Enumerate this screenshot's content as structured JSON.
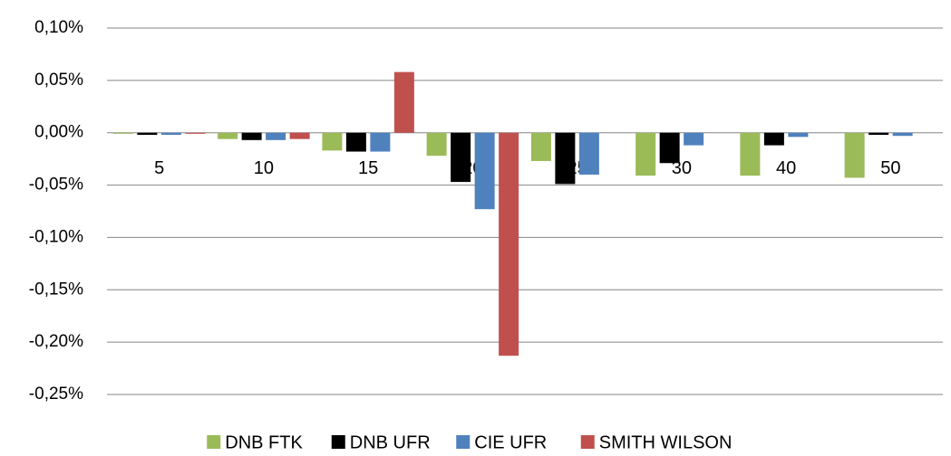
{
  "chart_data": {
    "type": "bar",
    "categories": [
      "5",
      "10",
      "15",
      "20",
      "25",
      "30",
      "40",
      "50"
    ],
    "series": [
      {
        "name": "DNB FTK",
        "color": "#9bbb59",
        "values": [
          -0.001,
          -0.006,
          -0.017,
          -0.022,
          -0.027,
          -0.041,
          -0.041,
          -0.043
        ]
      },
      {
        "name": "DNB UFR",
        "color": "#000000",
        "values": [
          -0.002,
          -0.007,
          -0.018,
          -0.047,
          -0.049,
          -0.029,
          -0.012,
          -0.002
        ]
      },
      {
        "name": "CIE UFR",
        "color": "#4f81bd",
        "values": [
          -0.002,
          -0.007,
          -0.018,
          -0.073,
          -0.04,
          -0.012,
          -0.004,
          -0.003
        ]
      },
      {
        "name": "SMITH WILSON",
        "color": "#c0504d",
        "values": [
          -0.001,
          -0.006,
          0.058,
          -0.213,
          null,
          null,
          null,
          null
        ]
      }
    ],
    "ylim": [
      -0.25,
      0.1
    ],
    "yticks": [
      {
        "value": 0.1,
        "label": "0,10%"
      },
      {
        "value": 0.05,
        "label": "0,05%"
      },
      {
        "value": 0,
        "label": "0,00%"
      },
      {
        "value": -0.05,
        "label": "-0,05%"
      },
      {
        "value": -0.1,
        "label": "-0,10%"
      },
      {
        "value": -0.15,
        "label": "-0,15%"
      },
      {
        "value": -0.2,
        "label": "-0,20%"
      },
      {
        "value": -0.25,
        "label": "-0,25%"
      }
    ],
    "grid": true,
    "legend": "bottom"
  }
}
